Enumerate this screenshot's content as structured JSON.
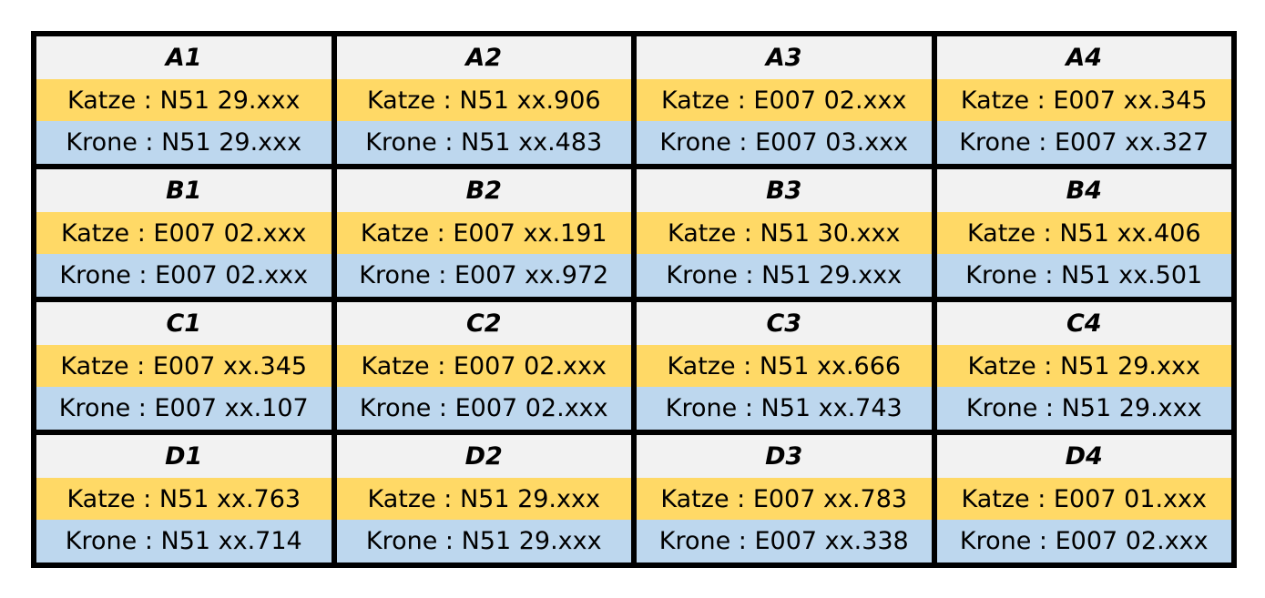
{
  "cells": [
    {
      "title": "A1",
      "katze": "Katze : N51 29.xxx",
      "krone": "Krone : N51 29.xxx"
    },
    {
      "title": "A2",
      "katze": "Katze : N51 xx.906",
      "krone": "Krone : N51 xx.483"
    },
    {
      "title": "A3",
      "katze": "Katze : E007 02.xxx",
      "krone": "Krone : E007 03.xxx"
    },
    {
      "title": "A4",
      "katze": "Katze : E007 xx.345",
      "krone": "Krone : E007 xx.327"
    },
    {
      "title": "B1",
      "katze": "Katze : E007 02.xxx",
      "krone": "Krone : E007 02.xxx"
    },
    {
      "title": "B2",
      "katze": "Katze : E007 xx.191",
      "krone": "Krone : E007 xx.972"
    },
    {
      "title": "B3",
      "katze": "Katze : N51 30.xxx",
      "krone": "Krone : N51 29.xxx"
    },
    {
      "title": "B4",
      "katze": "Katze : N51 xx.406",
      "krone": "Krone : N51 xx.501"
    },
    {
      "title": "C1",
      "katze": "Katze : E007 xx.345",
      "krone": "Krone : E007 xx.107"
    },
    {
      "title": "C2",
      "katze": "Katze : E007 02.xxx",
      "krone": "Krone : E007 02.xxx"
    },
    {
      "title": "C3",
      "katze": "Katze : N51 xx.666",
      "krone": "Krone : N51 xx.743"
    },
    {
      "title": "C4",
      "katze": "Katze : N51 29.xxx",
      "krone": "Krone : N51 29.xxx"
    },
    {
      "title": "D1",
      "katze": "Katze : N51 xx.763",
      "krone": "Krone : N51 xx.714"
    },
    {
      "title": "D2",
      "katze": "Katze : N51 29.xxx",
      "krone": "Krone : N51 29.xxx"
    },
    {
      "title": "D3",
      "katze": "Katze : E007 xx.783",
      "krone": "Krone : E007 xx.338"
    },
    {
      "title": "D4",
      "katze": "Katze : E007 01.xxx",
      "krone": "Krone : E007 02.xxx"
    }
  ],
  "colors": {
    "border": "#000000",
    "title_bg": "#f2f2f2",
    "katze_bg": "#ffd966",
    "krone_bg": "#bdd7ee"
  }
}
